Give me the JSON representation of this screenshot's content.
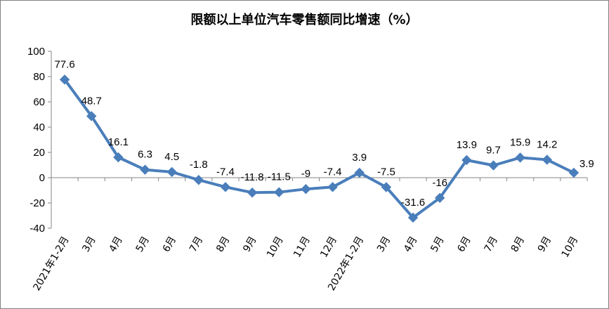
{
  "chart_data": {
    "type": "line",
    "title": "限额以上单位汽车零售额同比增速（%）",
    "xlabel": "",
    "ylabel": "",
    "ylim": [
      -40,
      100
    ],
    "yticks": [
      "100",
      "80",
      "60",
      "40",
      "20",
      "0",
      "-20",
      "-40"
    ],
    "grid": false,
    "legend": "none",
    "categories": [
      "2021年1-2月",
      "3月",
      "4月",
      "5月",
      "6月",
      "7月",
      "8月",
      "9月",
      "10月",
      "11月",
      "12月",
      "2022年1-2月",
      "3月",
      "4月",
      "5月",
      "6月",
      "7月",
      "8月",
      "9月",
      "10月"
    ],
    "series": [
      {
        "values": [
          77.6,
          48.7,
          16.1,
          6.3,
          4.5,
          -1.8,
          -7.4,
          -11.8,
          -11.5,
          -9,
          -7.4,
          3.9,
          -7.5,
          -31.6,
          -16,
          13.9,
          9.7,
          15.9,
          14.2,
          3.9
        ],
        "labels": [
          "77.6",
          "48.7",
          "16.1",
          "6.3",
          "4.5",
          "-1.8",
          "-7.4",
          "-11.8",
          "-11.5",
          "-9",
          "-7.4",
          "3.9",
          "-7.5",
          "-31.6",
          "-16",
          "13.9",
          "9.7",
          "15.9",
          "14.2",
          "3.9"
        ],
        "color": "#4a7ebb"
      }
    ]
  }
}
